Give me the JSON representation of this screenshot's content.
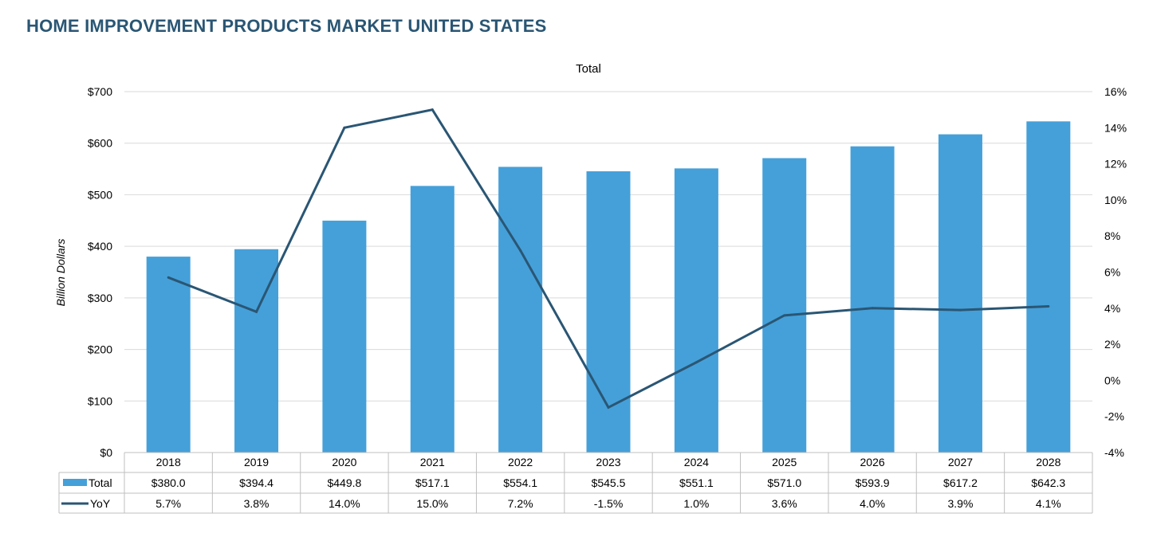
{
  "page": {
    "title": "HOME IMPROVEMENT PRODUCTS MARKET UNITED STATES"
  },
  "chart_data": {
    "type": "bar",
    "title": "Total",
    "categories": [
      "2018",
      "2019",
      "2020",
      "2021",
      "2022",
      "2023",
      "2024",
      "2025",
      "2026",
      "2027",
      "2028"
    ],
    "series": [
      {
        "name": "Total",
        "type": "bar",
        "axis": "left",
        "color": "#45a0d9",
        "values": [
          380.0,
          394.4,
          449.8,
          517.1,
          554.1,
          545.5,
          551.1,
          571.0,
          593.9,
          617.2,
          642.3
        ],
        "labels": [
          "$380.0",
          "$394.4",
          "$449.8",
          "$517.1",
          "$554.1",
          "$545.5",
          "$551.1",
          "$571.0",
          "$593.9",
          "$617.2",
          "$642.3"
        ]
      },
      {
        "name": "YoY",
        "type": "line",
        "axis": "right",
        "color": "#2a5674",
        "values": [
          5.7,
          3.8,
          14.0,
          15.0,
          7.2,
          -1.5,
          1.0,
          3.6,
          4.0,
          3.9,
          4.1
        ],
        "labels": [
          "5.7%",
          "3.8%",
          "14.0%",
          "15.0%",
          "7.2%",
          "-1.5%",
          "1.0%",
          "3.6%",
          "4.0%",
          "3.9%",
          "4.1%"
        ]
      }
    ],
    "ylabel": "Billion Dollars",
    "ylim": [
      0,
      700
    ],
    "y_ticks": [
      "$0",
      "$100",
      "$200",
      "$300",
      "$400",
      "$500",
      "$600",
      "$700"
    ],
    "y2lim": [
      -4,
      16
    ],
    "y2_ticks": [
      "-4%",
      "-2%",
      "0%",
      "2%",
      "4%",
      "6%",
      "8%",
      "10%",
      "12%",
      "14%",
      "16%"
    ],
    "grid": true,
    "legend": "data-table-below"
  }
}
